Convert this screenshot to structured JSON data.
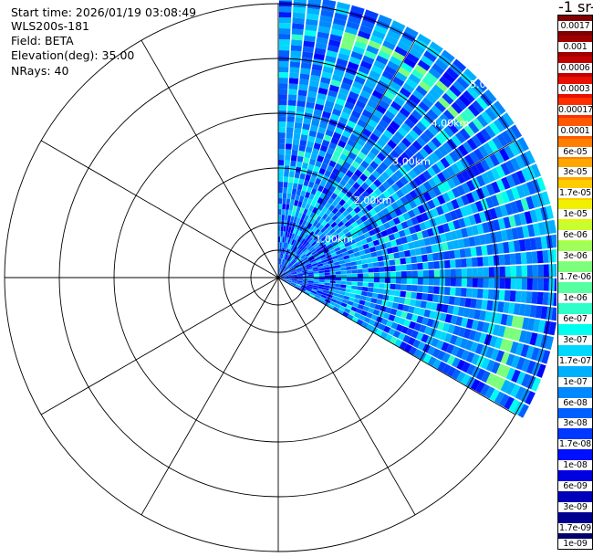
{
  "info": {
    "start_time": "Start time: 2026/01/19 03:08:49",
    "system": "WLS200s-181",
    "field": "Field: BETA",
    "elevation": "Elevation(deg): 35.00",
    "nrays": "NRays: 40"
  },
  "colorbar": {
    "title": "-1 sr-",
    "labels": [
      "0.0017",
      "0.001",
      "0.0006",
      "0.0003",
      "0.00017",
      "0.0001",
      "6e-05",
      "3e-05",
      "1.7e-05",
      "1e-05",
      "6e-06",
      "3e-06",
      "1.7e-06",
      "1e-06",
      "6e-07",
      "3e-07",
      "1.7e-07",
      "1e-07",
      "6e-08",
      "3e-08",
      "1.7e-08",
      "1e-08",
      "6e-09",
      "3e-09",
      "1.7e-09",
      "1e-09"
    ],
    "colors": [
      "#7f0000",
      "#9e0000",
      "#c40000",
      "#e81000",
      "#ff3000",
      "#ff5800",
      "#ff7f00",
      "#ffa600",
      "#ffcc00",
      "#f0f000",
      "#c8ff2e",
      "#a0ff58",
      "#7cff7c",
      "#58ffa0",
      "#2effc8",
      "#00ffee",
      "#00d8ff",
      "#00b0ff",
      "#0088ff",
      "#0060ff",
      "#0038ff",
      "#0010ff",
      "#0000e0",
      "#0000b8",
      "#000090",
      "#000068"
    ]
  },
  "chart_data": {
    "type": "heatmap",
    "projection": "polar (PPI scan)",
    "title": "",
    "elevation_deg": 35.0,
    "n_rays": 40,
    "azimuth_range_deg": [
      0,
      120
    ],
    "range_rings_km": [
      1.0,
      2.0,
      3.0,
      4.0,
      5.0
    ],
    "ring_labels": [
      "1.00km",
      "2.00km",
      "3.00km",
      "4.00km",
      "5.00km"
    ],
    "spoke_angles_deg": [
      0,
      30,
      60,
      90,
      120,
      150,
      180,
      210,
      240,
      270,
      300,
      330
    ],
    "colorscale": "log, 1e-09 to 0.0017",
    "dominant_value": "1e-07 to 1e-08",
    "features": [
      {
        "name": "enhanced backscatter arc",
        "range_km": 4.5,
        "azimuth_deg": [
          15,
          55
        ],
        "value": "3e-07 to 1.7e-06"
      },
      {
        "name": "enhanced backscatter arc",
        "range_km": 4.4,
        "azimuth_deg": [
          100,
          115
        ],
        "value": "1.7e-06"
      }
    ]
  }
}
